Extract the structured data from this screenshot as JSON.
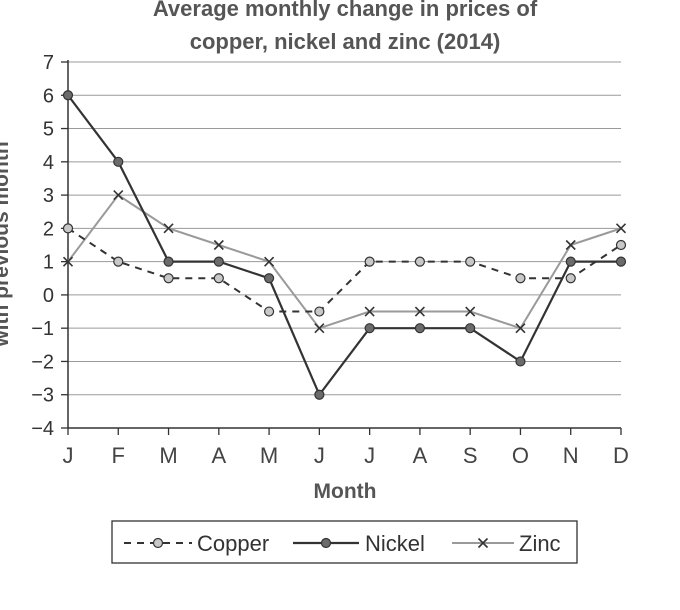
{
  "chart_data": {
    "type": "line",
    "title_line1": "Average monthly change in prices of",
    "title_line2": "copper, nickel and zinc (2014)",
    "xlabel": "Month",
    "ylabel": "with previous month",
    "categories": [
      "J",
      "F",
      "M",
      "A",
      "M",
      "J",
      "J",
      "A",
      "S",
      "O",
      "N",
      "D"
    ],
    "ylim": [
      -4,
      7
    ],
    "yticks": [
      "7",
      "6",
      "5",
      "4",
      "3",
      "2",
      "1",
      "0",
      "−1",
      "−2",
      "−3",
      "−4"
    ],
    "grid": true,
    "legend_position": "bottom",
    "series": [
      {
        "name": "Copper",
        "style": "dashed",
        "marker": "circle-light",
        "color": "#333333",
        "marker_color": "#c8c8c8",
        "values": [
          2,
          1,
          0.5,
          0.5,
          -0.5,
          -0.5,
          1,
          1,
          1,
          0.5,
          0.5,
          1.5
        ]
      },
      {
        "name": "Nickel",
        "style": "solid",
        "marker": "circle-dark",
        "color": "#333333",
        "marker_color": "#6b6b6b",
        "values": [
          6,
          4,
          1,
          1,
          0.5,
          -3,
          -1,
          -1,
          -1,
          -2,
          1,
          1
        ]
      },
      {
        "name": "Zinc",
        "style": "solid-light",
        "marker": "x",
        "color": "#9a9a9a",
        "marker_color": "#333333",
        "values": [
          1,
          3,
          2,
          1.5,
          1,
          -1,
          -0.5,
          -0.5,
          -0.5,
          -1,
          1.5,
          2
        ]
      }
    ]
  }
}
